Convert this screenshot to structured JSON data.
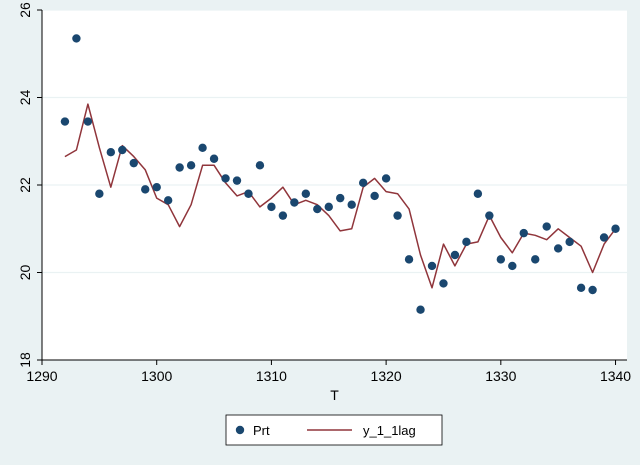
{
  "chart_data": {
    "type": "line",
    "title": "",
    "xlabel": "T",
    "ylabel": "",
    "xlim": [
      1290,
      1341
    ],
    "ylim": [
      18,
      26
    ],
    "x_ticks": [
      "1290",
      "1300",
      "1310",
      "1320",
      "1330",
      "1340"
    ],
    "y_ticks": [
      "18",
      "20",
      "22",
      "24",
      "26"
    ],
    "grid": "horizontal",
    "legend_position": "bottom",
    "series": [
      {
        "name": "Prt",
        "kind": "scatter",
        "color": "#1a476f",
        "x": [
          1292,
          1293,
          1294,
          1295,
          1296,
          1297,
          1298,
          1299,
          1300,
          1301,
          1302,
          1303,
          1304,
          1305,
          1306,
          1307,
          1308,
          1309,
          1310,
          1311,
          1312,
          1313,
          1314,
          1315,
          1316,
          1317,
          1318,
          1319,
          1320,
          1321,
          1322,
          1323,
          1324,
          1325,
          1326,
          1327,
          1328,
          1329,
          1330,
          1331,
          1332,
          1333,
          1334,
          1335,
          1336,
          1337,
          1338,
          1339,
          1340
        ],
        "y": [
          23.45,
          25.35,
          23.45,
          21.8,
          22.75,
          22.8,
          22.5,
          21.9,
          21.95,
          21.65,
          22.4,
          22.45,
          22.85,
          22.6,
          22.15,
          22.1,
          21.8,
          22.45,
          21.5,
          21.3,
          21.6,
          21.8,
          21.45,
          21.5,
          21.7,
          21.55,
          22.05,
          21.75,
          22.15,
          21.3,
          20.3,
          19.15,
          20.15,
          19.75,
          20.4,
          20.7,
          21.8,
          21.3,
          20.3,
          20.15,
          20.9,
          20.3,
          21.05,
          20.55,
          20.7,
          19.65,
          19.6,
          20.8,
          21.0
        ]
      },
      {
        "name": "y_1_1lag",
        "kind": "line",
        "color": "#90353b",
        "x": [
          1292,
          1293,
          1294,
          1295,
          1296,
          1297,
          1298,
          1299,
          1300,
          1301,
          1302,
          1303,
          1304,
          1305,
          1306,
          1307,
          1308,
          1309,
          1310,
          1311,
          1312,
          1313,
          1314,
          1315,
          1316,
          1317,
          1318,
          1319,
          1320,
          1321,
          1322,
          1323,
          1324,
          1325,
          1326,
          1327,
          1328,
          1329,
          1330,
          1331,
          1332,
          1333,
          1334,
          1335,
          1336,
          1337,
          1338,
          1339,
          1340
        ],
        "y": [
          22.65,
          22.8,
          23.85,
          22.85,
          21.95,
          22.9,
          22.65,
          22.35,
          21.7,
          21.55,
          21.05,
          21.55,
          22.45,
          22.45,
          22.05,
          21.75,
          21.85,
          21.5,
          21.7,
          21.95,
          21.55,
          21.65,
          21.55,
          21.3,
          20.95,
          21.0,
          21.95,
          22.15,
          21.85,
          21.8,
          21.45,
          20.4,
          19.65,
          20.65,
          20.15,
          20.65,
          20.7,
          21.3,
          20.8,
          20.45,
          20.9,
          20.85,
          20.75,
          21.0,
          20.8,
          20.6,
          20.0,
          20.65,
          21.0
        ]
      }
    ]
  },
  "colors": {
    "background": "#eaf2f3",
    "plot_background": "#ffffff",
    "grid": "#eaf2f3",
    "axis": "#000000"
  }
}
